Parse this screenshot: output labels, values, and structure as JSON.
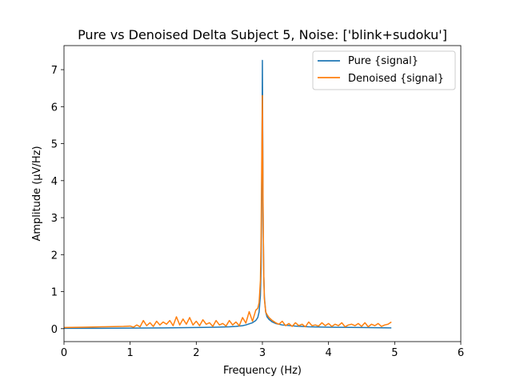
{
  "chart_data": {
    "type": "line",
    "title": "Pure vs Denoised Delta Subject 5, Noise: ['blink+sudoku']",
    "xlabel": "Frequency (Hz)",
    "ylabel": "Amplitude (μV/Hz)",
    "xlim": [
      0,
      6
    ],
    "ylim": [
      -0.35,
      7.65
    ],
    "xticks": [
      0,
      1,
      2,
      3,
      4,
      5,
      6
    ],
    "yticks": [
      0,
      1,
      2,
      3,
      4,
      5,
      6,
      7
    ],
    "grid": false,
    "legend_position": "top-right",
    "series": [
      {
        "name": "Pure {signal}",
        "color": "#1f77b4",
        "x": [
          0,
          0.5,
          1.0,
          1.5,
          2.0,
          2.3,
          2.5,
          2.6,
          2.7,
          2.75,
          2.8,
          2.85,
          2.9,
          2.93,
          2.95,
          2.97,
          2.98,
          2.99,
          3.0,
          3.01,
          3.02,
          3.03,
          3.05,
          3.07,
          3.1,
          3.15,
          3.2,
          3.3,
          3.5,
          3.7,
          4.0,
          4.5,
          4.95
        ],
        "y": [
          0.01,
          0.01,
          0.015,
          0.02,
          0.03,
          0.04,
          0.05,
          0.06,
          0.08,
          0.1,
          0.13,
          0.16,
          0.22,
          0.3,
          0.45,
          0.9,
          1.6,
          3.5,
          7.25,
          3.3,
          1.5,
          0.85,
          0.45,
          0.32,
          0.25,
          0.18,
          0.14,
          0.1,
          0.07,
          0.05,
          0.04,
          0.03,
          0.02
        ]
      },
      {
        "name": "Denoised {signal}",
        "color": "#ff7f0e",
        "x": [
          0,
          0.3,
          0.6,
          0.9,
          1.0,
          1.05,
          1.1,
          1.15,
          1.2,
          1.25,
          1.3,
          1.35,
          1.4,
          1.45,
          1.5,
          1.55,
          1.6,
          1.65,
          1.7,
          1.75,
          1.8,
          1.85,
          1.9,
          1.95,
          2.0,
          2.05,
          2.1,
          2.15,
          2.2,
          2.25,
          2.3,
          2.35,
          2.4,
          2.45,
          2.5,
          2.55,
          2.6,
          2.65,
          2.7,
          2.75,
          2.8,
          2.85,
          2.9,
          2.93,
          2.95,
          2.97,
          2.98,
          2.99,
          3.0,
          3.01,
          3.02,
          3.03,
          3.05,
          3.07,
          3.1,
          3.15,
          3.2,
          3.25,
          3.3,
          3.35,
          3.4,
          3.45,
          3.5,
          3.55,
          3.6,
          3.65,
          3.7,
          3.75,
          3.8,
          3.85,
          3.9,
          3.95,
          4.0,
          4.05,
          4.1,
          4.15,
          4.2,
          4.25,
          4.3,
          4.35,
          4.4,
          4.45,
          4.5,
          4.55,
          4.6,
          4.65,
          4.7,
          4.75,
          4.8,
          4.85,
          4.9,
          4.95
        ],
        "y": [
          0.03,
          0.04,
          0.05,
          0.06,
          0.07,
          0.04,
          0.1,
          0.05,
          0.22,
          0.08,
          0.16,
          0.06,
          0.2,
          0.1,
          0.18,
          0.12,
          0.22,
          0.08,
          0.32,
          0.1,
          0.26,
          0.12,
          0.3,
          0.1,
          0.2,
          0.08,
          0.24,
          0.12,
          0.16,
          0.06,
          0.22,
          0.1,
          0.14,
          0.07,
          0.22,
          0.1,
          0.18,
          0.08,
          0.3,
          0.15,
          0.46,
          0.2,
          0.5,
          0.55,
          0.7,
          1.3,
          2.4,
          4.5,
          6.3,
          3.2,
          1.5,
          0.8,
          0.45,
          0.38,
          0.3,
          0.22,
          0.16,
          0.12,
          0.2,
          0.08,
          0.14,
          0.06,
          0.16,
          0.08,
          0.12,
          0.05,
          0.18,
          0.08,
          0.1,
          0.07,
          0.16,
          0.08,
          0.14,
          0.06,
          0.12,
          0.08,
          0.16,
          0.05,
          0.1,
          0.12,
          0.08,
          0.14,
          0.06,
          0.16,
          0.05,
          0.12,
          0.08,
          0.14,
          0.06,
          0.1,
          0.12,
          0.18
        ]
      }
    ]
  }
}
